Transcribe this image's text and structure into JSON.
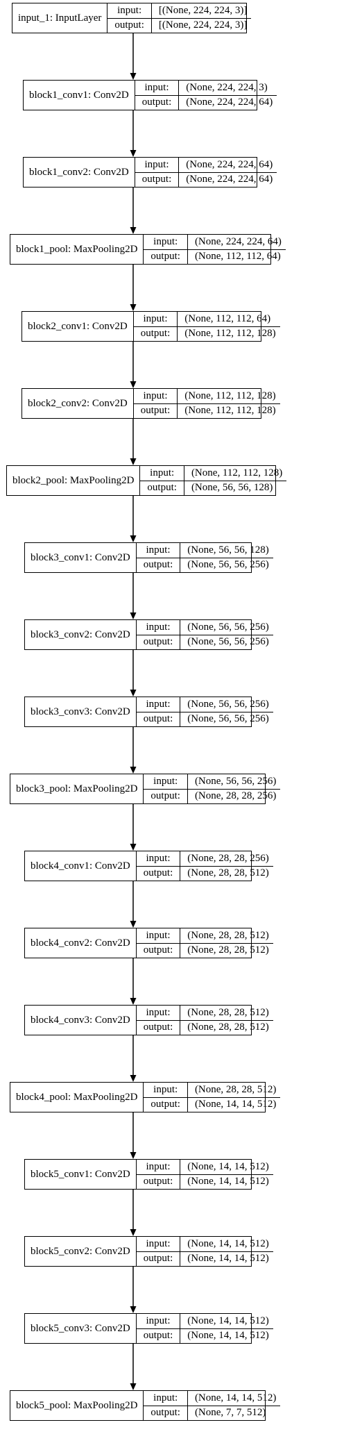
{
  "diagram": {
    "layers": [
      {
        "name": "input_1: InputLayer",
        "input_label": "input:",
        "output_label": "output:",
        "input": "[(None, 224, 224, 3)]",
        "output": "[(None, 224, 224, 3)]"
      },
      {
        "name": "block1_conv1: Conv2D",
        "input_label": "input:",
        "output_label": "output:",
        "input": "(None, 224, 224, 3)",
        "output": "(None, 224, 224, 64)"
      },
      {
        "name": "block1_conv2: Conv2D",
        "input_label": "input:",
        "output_label": "output:",
        "input": "(None, 224, 224, 64)",
        "output": "(None, 224, 224, 64)"
      },
      {
        "name": "block1_pool: MaxPooling2D",
        "input_label": "input:",
        "output_label": "output:",
        "input": "(None, 224, 224, 64)",
        "output": "(None, 112, 112, 64)"
      },
      {
        "name": "block2_conv1: Conv2D",
        "input_label": "input:",
        "output_label": "output:",
        "input": "(None, 112, 112, 64)",
        "output": "(None, 112, 112, 128)"
      },
      {
        "name": "block2_conv2: Conv2D",
        "input_label": "input:",
        "output_label": "output:",
        "input": "(None, 112, 112, 128)",
        "output": "(None, 112, 112, 128)"
      },
      {
        "name": "block2_pool: MaxPooling2D",
        "input_label": "input:",
        "output_label": "output:",
        "input": "(None, 112, 112, 128)",
        "output": "(None, 56, 56, 128)"
      },
      {
        "name": "block3_conv1: Conv2D",
        "input_label": "input:",
        "output_label": "output:",
        "input": "(None, 56, 56, 128)",
        "output": "(None, 56, 56, 256)"
      },
      {
        "name": "block3_conv2: Conv2D",
        "input_label": "input:",
        "output_label": "output:",
        "input": "(None, 56, 56, 256)",
        "output": "(None, 56, 56, 256)"
      },
      {
        "name": "block3_conv3: Conv2D",
        "input_label": "input:",
        "output_label": "output:",
        "input": "(None, 56, 56, 256)",
        "output": "(None, 56, 56, 256)"
      },
      {
        "name": "block3_pool: MaxPooling2D",
        "input_label": "input:",
        "output_label": "output:",
        "input": "(None, 56, 56, 256)",
        "output": "(None, 28, 28, 256)"
      },
      {
        "name": "block4_conv1: Conv2D",
        "input_label": "input:",
        "output_label": "output:",
        "input": "(None, 28, 28, 256)",
        "output": "(None, 28, 28, 512)"
      },
      {
        "name": "block4_conv2: Conv2D",
        "input_label": "input:",
        "output_label": "output:",
        "input": "(None, 28, 28, 512)",
        "output": "(None, 28, 28, 512)"
      },
      {
        "name": "block4_conv3: Conv2D",
        "input_label": "input:",
        "output_label": "output:",
        "input": "(None, 28, 28, 512)",
        "output": "(None, 28, 28, 512)"
      },
      {
        "name": "block4_pool: MaxPooling2D",
        "input_label": "input:",
        "output_label": "output:",
        "input": "(None, 28, 28, 512)",
        "output": "(None, 14, 14, 512)"
      },
      {
        "name": "block5_conv1: Conv2D",
        "input_label": "input:",
        "output_label": "output:",
        "input": "(None, 14, 14, 512)",
        "output": "(None, 14, 14, 512)"
      },
      {
        "name": "block5_conv2: Conv2D",
        "input_label": "input:",
        "output_label": "output:",
        "input": "(None, 14, 14, 512)",
        "output": "(None, 14, 14, 512)"
      },
      {
        "name": "block5_conv3: Conv2D",
        "input_label": "input:",
        "output_label": "output:",
        "input": "(None, 14, 14, 512)",
        "output": "(None, 14, 14, 512)"
      },
      {
        "name": "block5_pool: MaxPooling2D",
        "input_label": "input:",
        "output_label": "output:",
        "input": "(None, 14, 14, 512)",
        "output": "(None, 7, 7, 512)"
      }
    ]
  }
}
